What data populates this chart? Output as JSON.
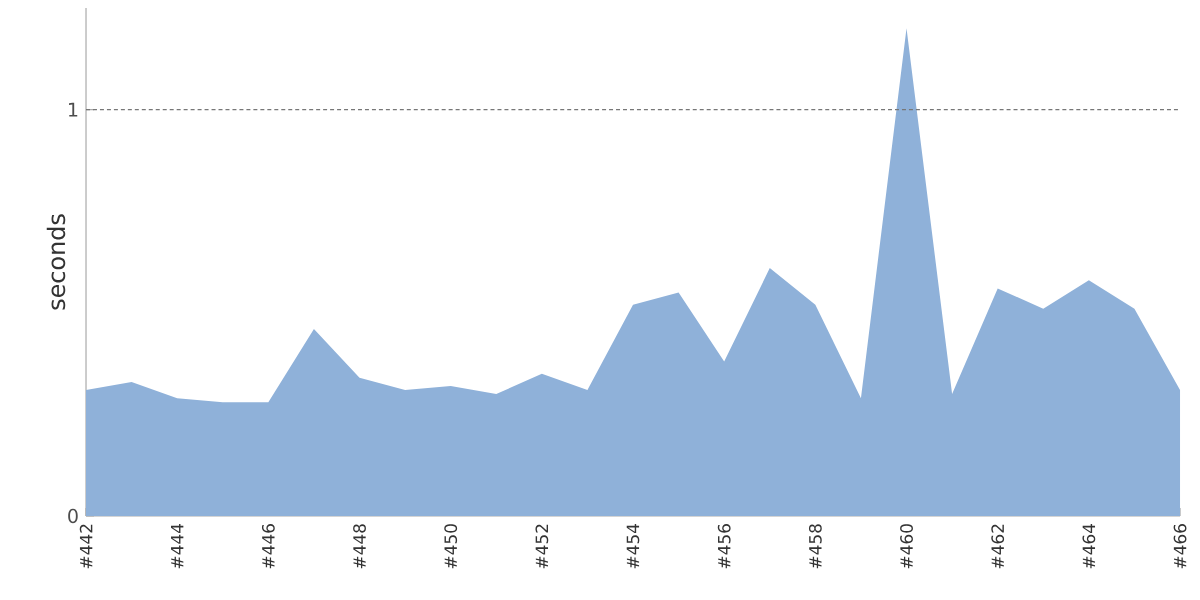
{
  "chart_data": {
    "type": "area",
    "ylabel": "seconds",
    "categories": [
      "#442",
      null,
      "#444",
      null,
      "#446",
      null,
      "#448",
      null,
      "#450",
      null,
      "#452",
      null,
      "#454",
      null,
      "#456",
      null,
      "#458",
      null,
      "#460",
      null,
      "#462",
      null,
      "#464",
      null,
      "#466"
    ],
    "values": [
      0.31,
      0.33,
      0.29,
      0.28,
      0.28,
      0.46,
      0.34,
      0.31,
      0.32,
      0.3,
      0.35,
      0.31,
      0.52,
      0.55,
      0.38,
      0.61,
      0.52,
      0.29,
      1.2,
      0.3,
      0.56,
      0.51,
      0.58,
      0.51,
      0.31
    ],
    "color": "#8fb1d9",
    "ylim": [
      0,
      1.25
    ],
    "yticks": [
      0,
      1
    ],
    "ref_lines": [
      {
        "axis": "y",
        "value": 1,
        "color": "#777777",
        "line_style": "dashed"
      }
    ]
  }
}
